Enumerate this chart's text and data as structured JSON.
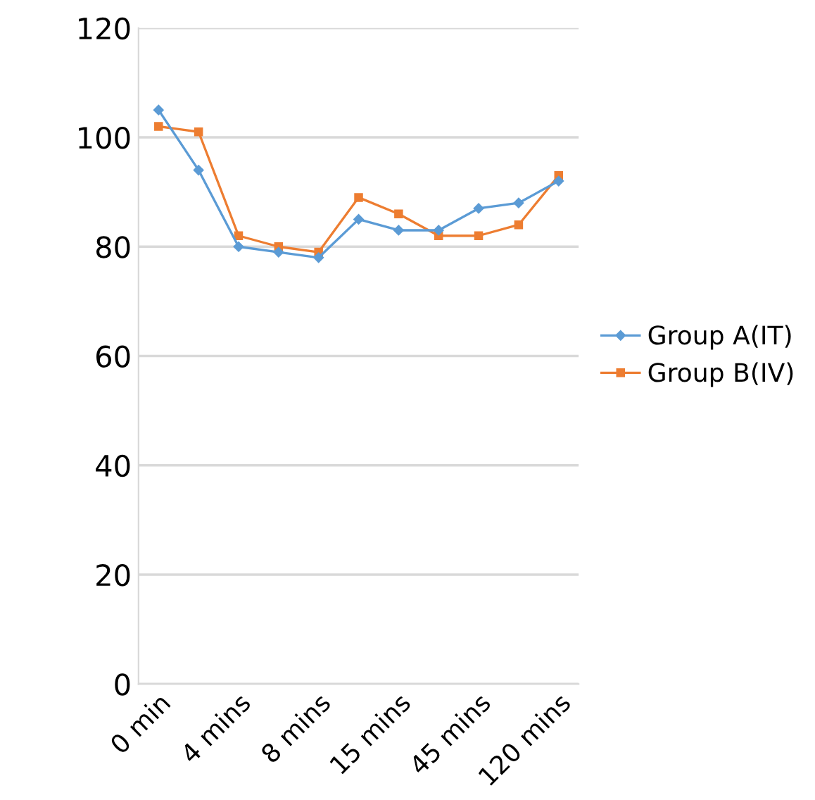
{
  "chart_data": {
    "type": "line",
    "categories": [
      "0 min",
      null,
      "4 mins",
      null,
      "8 mins",
      null,
      "15 mins",
      null,
      "45 mins",
      null,
      "120 mins"
    ],
    "series": [
      {
        "name": "Group A(IT)",
        "color": "#5b9bd5",
        "marker": "diamond",
        "values": [
          105,
          94,
          80,
          79,
          78,
          85,
          83,
          83,
          87,
          88,
          92
        ]
      },
      {
        "name": "Group B(IV)",
        "color": "#ed7d31",
        "marker": "square",
        "values": [
          102,
          101,
          82,
          80,
          79,
          89,
          86,
          82,
          82,
          84,
          93
        ]
      }
    ],
    "ylim": [
      0,
      120
    ],
    "yticks": [
      0,
      20,
      40,
      60,
      80,
      100,
      120
    ],
    "grid": "y",
    "legend": "right",
    "line_style": "solid"
  }
}
